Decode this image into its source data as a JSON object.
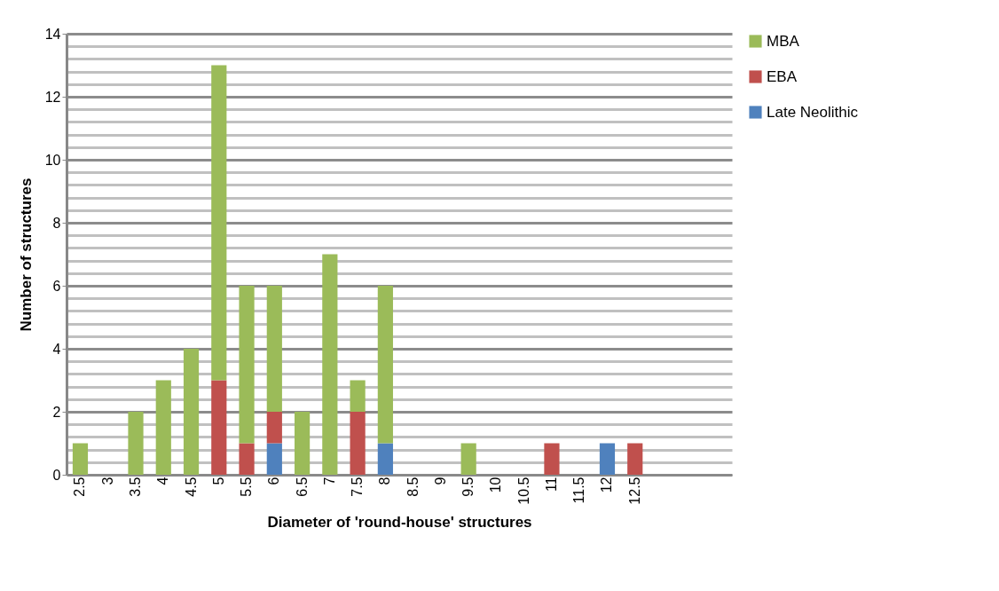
{
  "chart_data": {
    "type": "bar",
    "stacked": true,
    "xlabel": "Diameter of 'round-house' structures",
    "ylabel": "Number of structures",
    "categories": [
      "2.5",
      "3",
      "3.5",
      "4",
      "4.5",
      "5",
      "5.5",
      "6",
      "6.5",
      "7",
      "7.5",
      "8",
      "8.5",
      "9",
      "9.5",
      "10",
      "10.5",
      "11",
      "11.5",
      "12",
      "12.5",
      null,
      null,
      null
    ],
    "series": [
      {
        "name": "Late Neolithic",
        "color": "#4f81bd",
        "values": [
          0,
          0,
          0,
          0,
          0,
          0,
          0,
          1,
          0,
          0,
          0,
          1,
          0,
          0,
          0,
          0,
          0,
          0,
          0,
          1,
          0,
          0,
          0,
          0
        ]
      },
      {
        "name": "EBA",
        "color": "#c0504d",
        "values": [
          0,
          0,
          0,
          0,
          0,
          3,
          1,
          1,
          0,
          0,
          2,
          0,
          0,
          0,
          0,
          0,
          0,
          1,
          0,
          0,
          1,
          0,
          0,
          0
        ]
      },
      {
        "name": "MBA",
        "color": "#9bbb59",
        "values": [
          1,
          0,
          2,
          3,
          4,
          10,
          5,
          4,
          2,
          7,
          1,
          5,
          0,
          0,
          1,
          0,
          0,
          0,
          0,
          0,
          0,
          0,
          0,
          0
        ]
      }
    ],
    "ylim": [
      0,
      14
    ],
    "yticks": [
      0,
      {
        "value": 0.4,
        "label": null
      },
      {
        "value": 0.8,
        "label": null
      },
      {
        "value": 1.2,
        "label": null
      },
      {
        "value": 1.6,
        "label": null
      },
      2,
      {
        "value": 2.4,
        "label": null
      },
      {
        "value": 2.8,
        "label": null
      },
      {
        "value": 3.2,
        "label": null
      },
      {
        "value": 3.6,
        "label": null
      },
      4,
      {
        "value": 4.4,
        "label": null
      },
      {
        "value": 4.8,
        "label": null
      },
      {
        "value": 5.2,
        "label": null
      },
      {
        "value": 5.6,
        "label": null
      },
      6,
      {
        "value": 6.4,
        "label": null
      },
      {
        "value": 6.8,
        "label": null
      },
      {
        "value": 7.2,
        "label": null
      },
      {
        "value": 7.6,
        "label": null
      },
      8,
      {
        "value": 8.4,
        "label": null
      },
      {
        "value": 8.8,
        "label": null
      },
      {
        "value": 9.2,
        "label": null
      },
      {
        "value": 9.6,
        "label": null
      },
      10,
      {
        "value": 10.4,
        "label": null
      },
      {
        "value": 10.8,
        "label": null
      },
      {
        "value": 11.2,
        "label": null
      },
      {
        "value": 11.6,
        "label": null
      },
      12,
      {
        "value": 12.4,
        "label": null
      },
      {
        "value": 12.8,
        "label": null
      },
      {
        "value": 13.2,
        "label": null
      },
      {
        "value": 13.6,
        "label": null
      },
      14
    ],
    "grid": "y",
    "legend": "right"
  }
}
